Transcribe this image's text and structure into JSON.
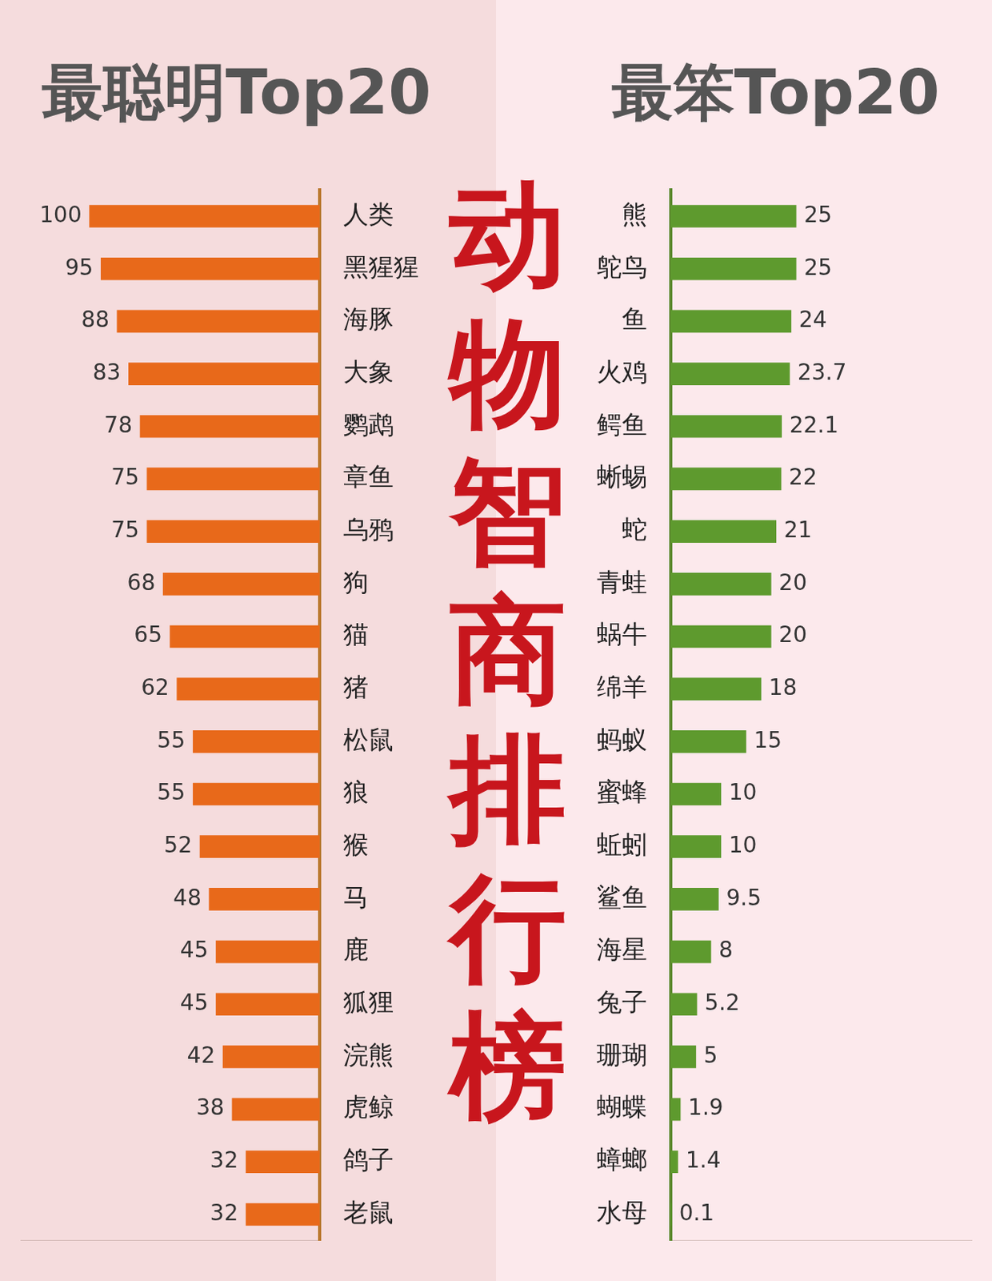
{
  "title": "动物智商排行榜",
  "chart_data": [
    {
      "type": "bar",
      "title": "最聪明Top20",
      "orientation": "horizontal",
      "categories": [
        "人类",
        "黑猩猩",
        "海豚",
        "大象",
        "鹦鹉",
        "章鱼",
        "乌鸦",
        "狗",
        "猫",
        "猪",
        "松鼠",
        "狼",
        "猴",
        "马",
        "鹿",
        "狐狸",
        "浣熊",
        "虎鲸",
        "鸽子",
        "老鼠"
      ],
      "values": [
        100,
        95,
        88,
        83,
        78,
        75,
        75,
        68,
        65,
        62,
        55,
        55,
        52,
        48,
        45,
        45,
        42,
        38,
        32,
        32
      ],
      "color": "#e8691a",
      "xlim": [
        0,
        130
      ],
      "grid": false,
      "data_labels": true,
      "tick_labels": "y"
    },
    {
      "type": "bar",
      "title": "最笨Top20",
      "orientation": "horizontal",
      "categories": [
        "熊",
        "鸵鸟",
        "鱼",
        "火鸡",
        "鳄鱼",
        "蜥蜴",
        "蛇",
        "青蛙",
        "蜗牛",
        "绵羊",
        "蚂蚁",
        "蜜蜂",
        "蚯蚓",
        "鲨鱼",
        "海星",
        "兔子",
        "珊瑚",
        "蝴蝶",
        "蟑螂",
        "水母"
      ],
      "values": [
        25,
        25,
        24,
        23.7,
        22.1,
        22,
        21,
        20,
        20,
        18,
        15,
        10,
        10,
        9.5,
        8,
        5.2,
        5,
        1.9,
        1.4,
        0.1
      ],
      "color": "#5e9a2e",
      "xlim": [
        0,
        60
      ],
      "grid": false,
      "data_labels": true,
      "tick_labels": "y"
    }
  ]
}
